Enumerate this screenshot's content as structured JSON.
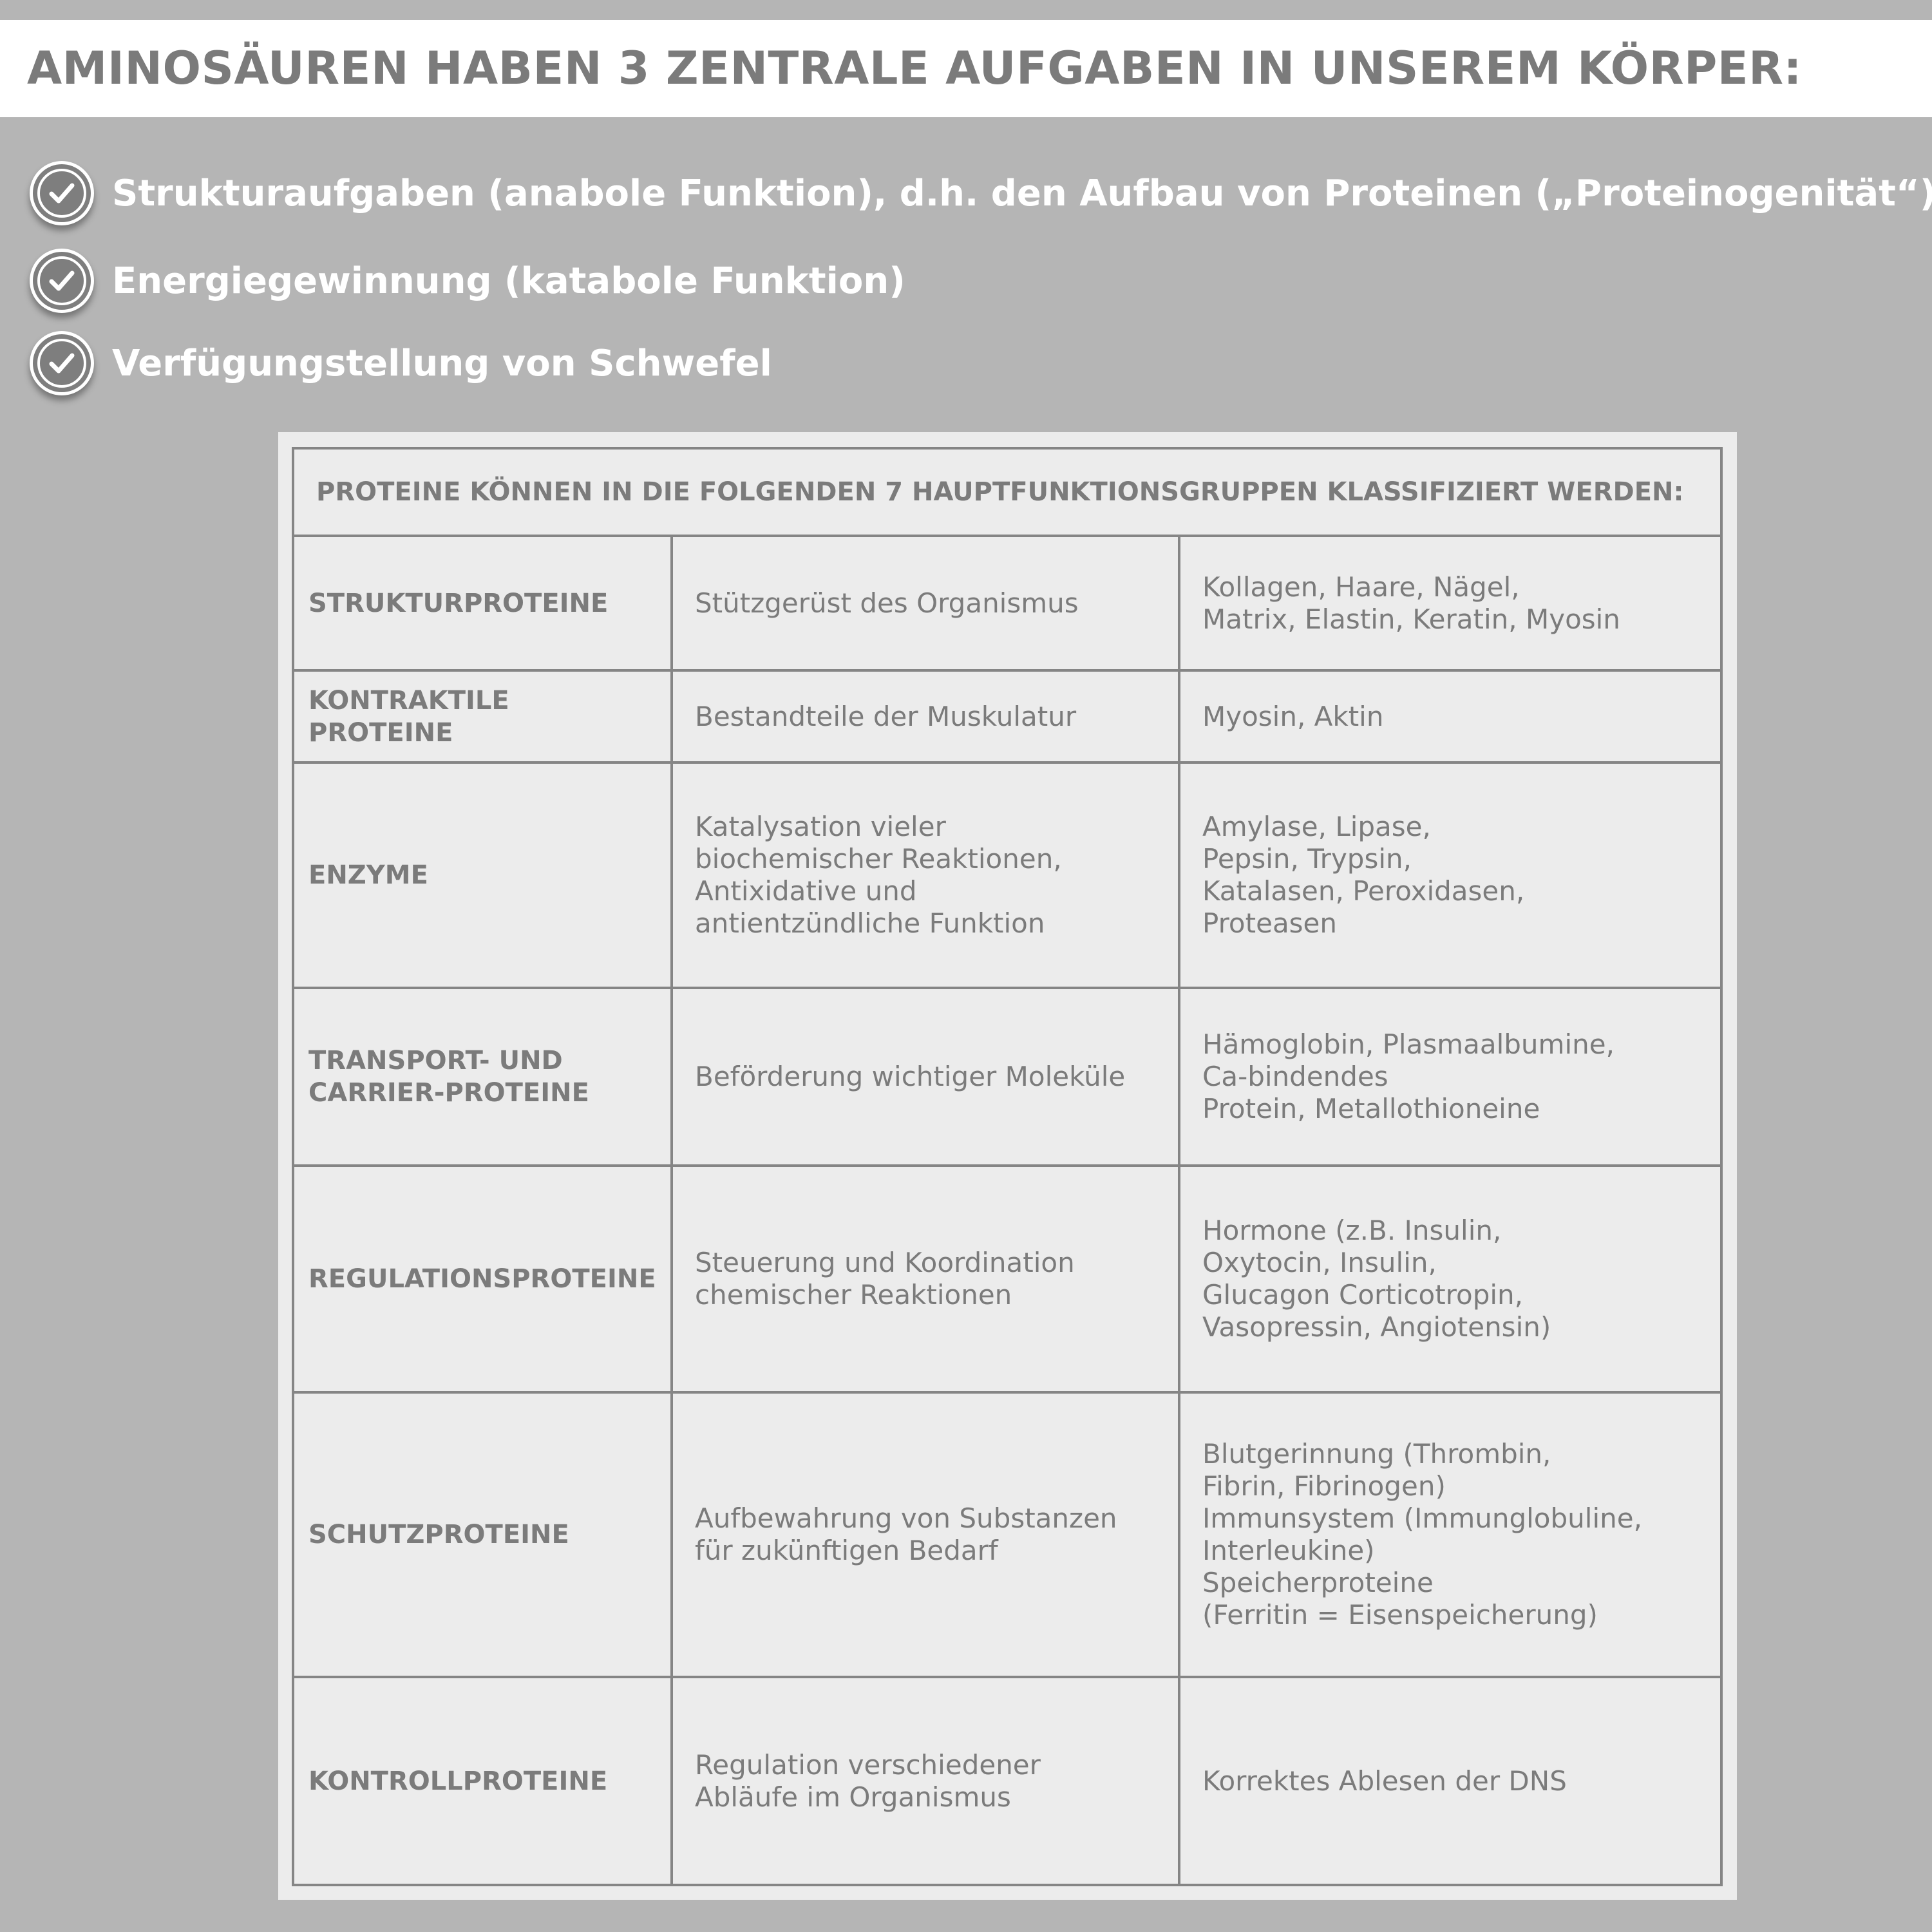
{
  "title": "AMINOSÄUREN HABEN 3 ZENTRALE AUFGABEN IN UNSEREM KÖRPER:",
  "bullets": [
    {
      "icon": "check-circle-icon",
      "text": "Strukturaufgaben (anabole Funktion), d.h. den Aufbau von Proteinen („Proteinogenität“)"
    },
    {
      "icon": "check-circle-icon",
      "text": "Energiegewinnung (katabole Funktion)"
    },
    {
      "icon": "check-circle-icon",
      "text": "Verfügungstellung von Schwefel"
    }
  ],
  "table": {
    "header": "PROTEINE KÖNNEN IN DIE FOLGENDEN 7 HAUPTFUNKTIONSGRUPPEN KLASSIFIZIERT WERDEN:",
    "rows": [
      {
        "group": [
          "STRUKTURPROTEINE"
        ],
        "function": [
          "Stützgerüst des Organismus"
        ],
        "examples": [
          "Kollagen, Haare, Nägel,",
          "Matrix, Elastin, Keratin, Myosin"
        ]
      },
      {
        "group": [
          "KONTRAKTILE PROTEINE"
        ],
        "function": [
          "Bestandteile der Muskulatur"
        ],
        "examples": [
          "Myosin, Aktin"
        ]
      },
      {
        "group": [
          "ENZYME"
        ],
        "function": [
          "Katalysation vieler",
          "biochemischer Reaktionen,",
          "Antixidative und",
          "antientzündliche Funktion"
        ],
        "examples": [
          "Amylase, Lipase,",
          "Pepsin, Trypsin,",
          "Katalasen, Peroxidasen,",
          "Proteasen"
        ]
      },
      {
        "group": [
          "TRANSPORT- UND",
          "CARRIER-PROTEINE"
        ],
        "function": [
          "Beförderung wichtiger Moleküle"
        ],
        "examples": [
          "Hämoglobin, Plasmaalbumine,",
          "Ca-bindendes",
          "Protein, Metallothioneine"
        ]
      },
      {
        "group": [
          "REGULATIONSPROTEINE"
        ],
        "function": [
          "Steuerung und Koordination",
          "chemischer Reaktionen"
        ],
        "examples": [
          "Hormone (z.B. Insulin,",
          "Oxytocin, Insulin,",
          "Glucagon Corticotropin,",
          "Vasopressin, Angiotensin)"
        ]
      },
      {
        "group": [
          "SCHUTZPROTEINE"
        ],
        "function": [
          "Aufbewahrung von Substanzen",
          "für zukünftigen Bedarf"
        ],
        "examples": [
          "Blutgerinnung (Thrombin,",
          "Fibrin, Fibrinogen)",
          "Immunsystem (Immunglobuline,",
          "Interleukine)",
          "Speicherproteine",
          "(Ferritin = Eisenspeicherung)"
        ]
      },
      {
        "group": [
          "KONTROLLPROTEINE"
        ],
        "function": [
          "Regulation verschiedener",
          "Abläufe im Organismus"
        ],
        "examples": [
          "Korrektes Ablesen der DNS"
        ]
      }
    ]
  },
  "colors": {
    "background": "#b5b5b5",
    "text": "#7b7b7b",
    "table_bg": "#ececec",
    "border": "#858585"
  }
}
